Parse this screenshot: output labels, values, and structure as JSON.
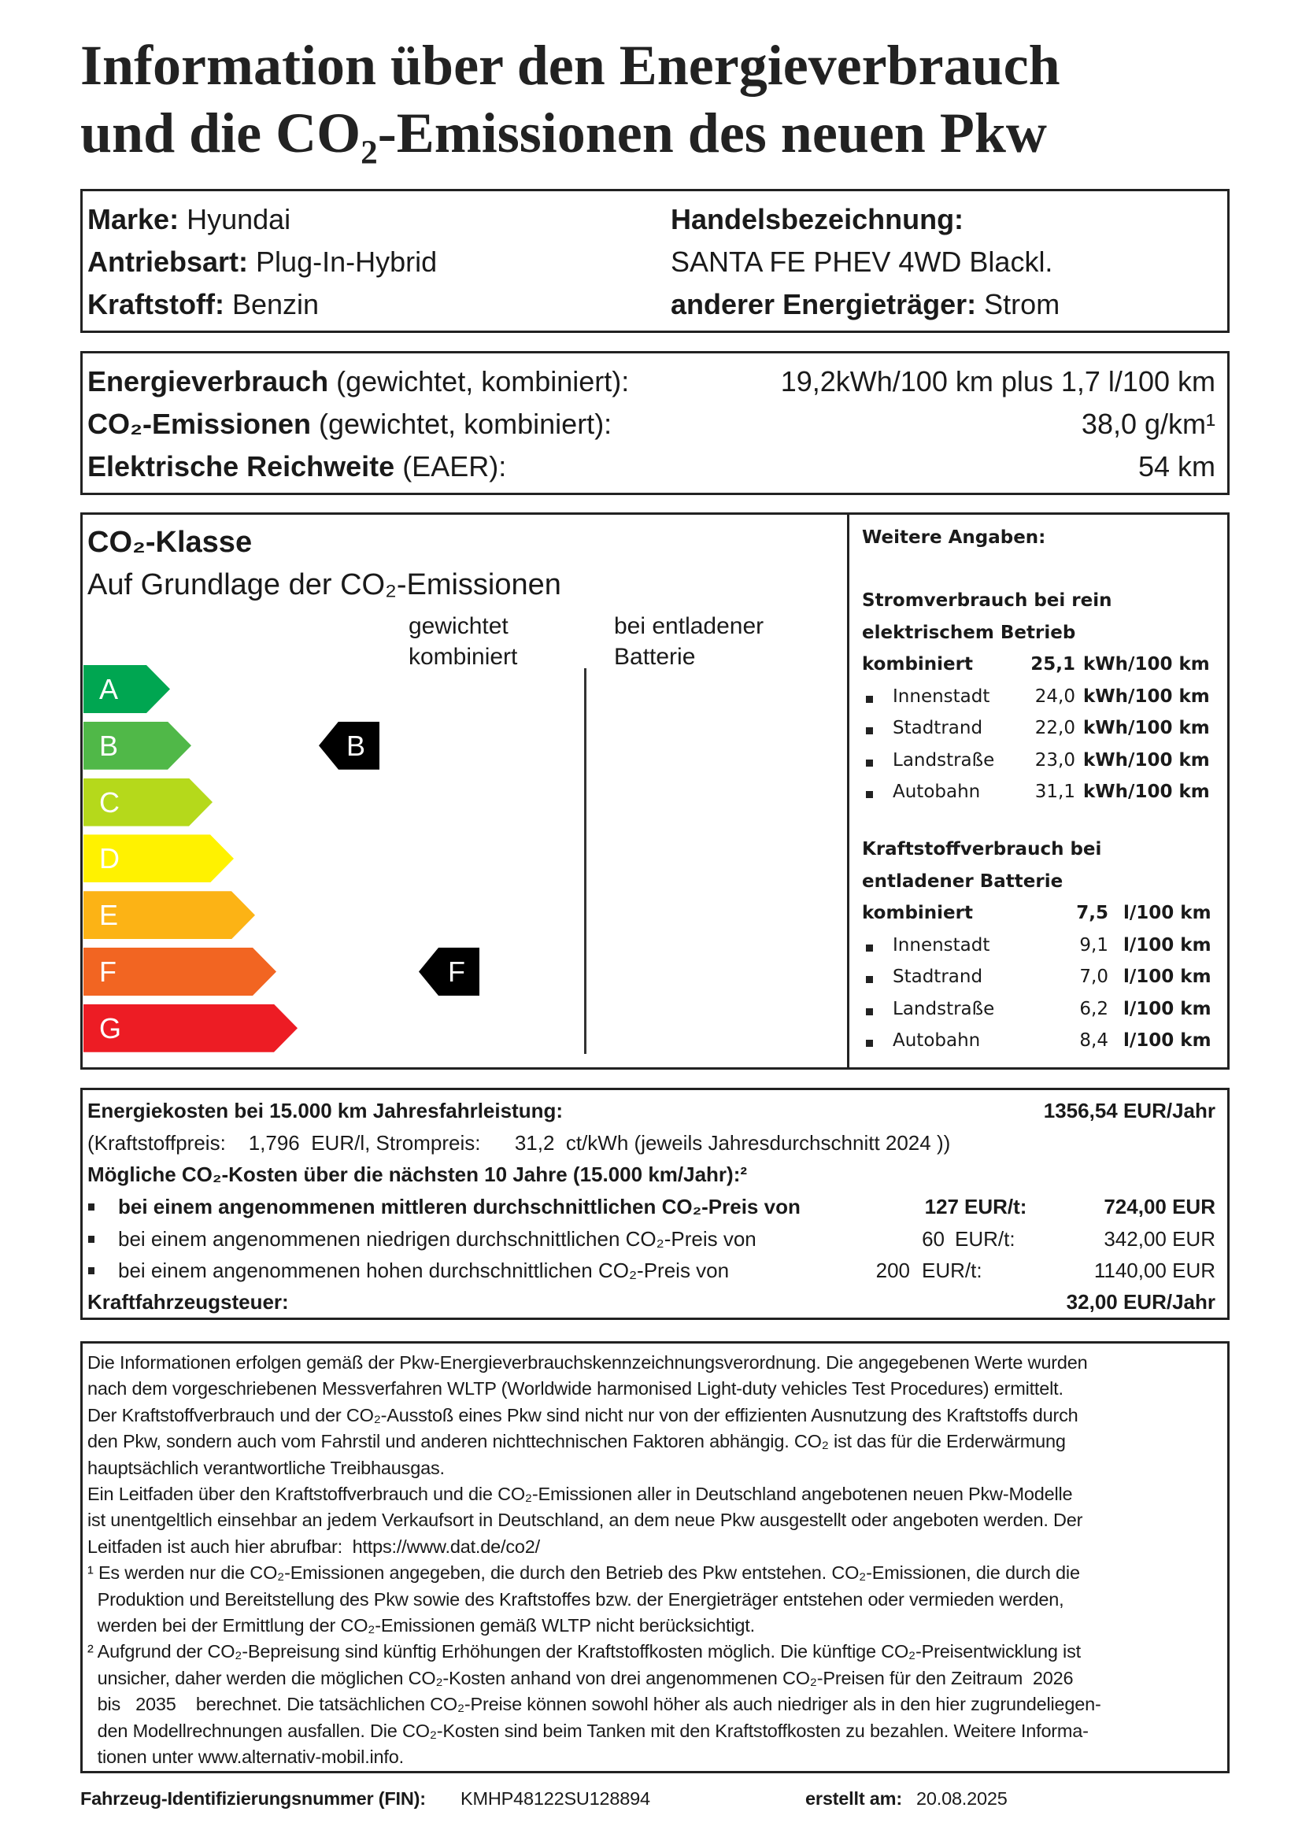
{
  "title": {
    "line1": "Information über den Energieverbrauch",
    "line2": "und die CO₂-Emissionen des neuen Pkw"
  },
  "vehicle": {
    "marke_label": "Marke:",
    "marke": "Hyundai",
    "antrieb_label": "Antriebsart:",
    "antrieb": "Plug-In-Hybrid",
    "kraftstoff_label": "Kraftstoff:",
    "kraftstoff": "Benzin",
    "handel_label": "Handelsbezeichnung:",
    "handel": "SANTA FE PHEV 4WD Blackl.",
    "energie_label": "anderer Energieträger:",
    "energie": "Strom"
  },
  "consumption": {
    "energie_bold": "Energieverbrauch",
    "energie_rest": " (gewichtet, kombiniert):",
    "energie_value": "19,2kWh/100 km plus 1,7 l/100 km",
    "co2_bold": "CO₂-Emissionen",
    "co2_rest": " (gewichtet, kombiniert):",
    "co2_value": "38,0 g/km¹",
    "range_bold": "Elektrische Reichweite",
    "range_rest": " (EAER):",
    "range_value": "54 km"
  },
  "co2_class": {
    "heading": "CO₂-Klasse",
    "subheading": "Auf Grundlage der CO₂-Emissionen",
    "col1_line1": "gewichtet",
    "col1_line2": "kombiniert",
    "col2_line1": "bei entladener",
    "col2_line2": "Batterie",
    "classes": [
      {
        "letter": "A",
        "color": "#00a651"
      },
      {
        "letter": "B",
        "color": "#50b848"
      },
      {
        "letter": "C",
        "color": "#b5d91b"
      },
      {
        "letter": "D",
        "color": "#fff200"
      },
      {
        "letter": "E",
        "color": "#fcb315"
      },
      {
        "letter": "F",
        "color": "#f26522"
      },
      {
        "letter": "G",
        "color": "#ed1c24"
      }
    ],
    "weighted_class": "B",
    "discharged_class": "F"
  },
  "further": {
    "heading": "Weitere Angaben:",
    "electric": {
      "title1": "Stromverbrauch bei rein",
      "title2": "elektrischem Betrieb",
      "combined_label": "kombiniert",
      "combined_value": "25,1",
      "combined_unit": "kWh/100 km",
      "items": [
        {
          "label": "Innenstadt",
          "value": "24,0",
          "unit": "kWh/100 km"
        },
        {
          "label": "Stadtrand",
          "value": "22,0",
          "unit": "kWh/100 km"
        },
        {
          "label": "Landstraße",
          "value": "23,0",
          "unit": "kWh/100 km"
        },
        {
          "label": "Autobahn",
          "value": "31,1",
          "unit": "kWh/100 km"
        }
      ]
    },
    "fuel": {
      "title1": "Kraftstoffverbrauch bei",
      "title2": "entladener Batterie",
      "combined_label": "kombiniert",
      "combined_value": "7,5",
      "combined_unit": "l/100 km",
      "items": [
        {
          "label": "Innenstadt",
          "value": "9,1",
          "unit": "l/100 km"
        },
        {
          "label": "Stadtrand",
          "value": "7,0",
          "unit": "l/100 km"
        },
        {
          "label": "Landstraße",
          "value": "6,2",
          "unit": "l/100 km"
        },
        {
          "label": "Autobahn",
          "value": "8,4",
          "unit": "l/100 km"
        }
      ]
    }
  },
  "costs": {
    "energy_label": "Energiekosten bei 15.000 km Jahresfahrleistung:",
    "energy_value": "1356,54 EUR/Jahr",
    "prices_line": "(Kraftstoffpreis:    1,796  EUR/l, Strompreis:      31,2  ct/kWh (jeweils Jahresdurchschnitt 2024 ))",
    "co2_label": "Mögliche CO₂-Kosten über die nächsten 10 Jahre (15.000 km/Jahr):²",
    "scenarios": [
      {
        "text": "bei einem angenommenen mittleren durchschnittlichen CO₂-Preis von",
        "price": "127",
        "unit": "EUR/t:",
        "amount": "724,00 EUR",
        "bold": true
      },
      {
        "text": "bei einem angenommenen niedrigen durchschnittlichen CO₂-Preis von",
        "price": "60",
        "unit": "EUR/t:",
        "amount": "342,00 EUR",
        "bold": false
      },
      {
        "text": "bei einem angenommenen hohen durchschnittlichen CO₂-Preis von",
        "price": "200",
        "unit": "EUR/t:",
        "amount": "1140,00 EUR",
        "bold": false
      }
    ],
    "tax_label": "Kraftfahrzeugsteuer:",
    "tax_value": "32,00 EUR/Jahr"
  },
  "notes": [
    "Die Informationen erfolgen gemäß der Pkw-Energieverbrauchskennzeichnungsverordnung. Die angegebenen Werte wurden",
    "nach dem vorgeschriebenen Messverfahren WLTP (Worldwide harmonised Light-duty vehicles Test Procedures) ermittelt.",
    "Der Kraftstoffverbrauch und der CO₂-Ausstoß eines Pkw sind nicht nur von der effizienten Ausnutzung des Kraftstoffs durch",
    "den Pkw, sondern auch vom Fahrstil und anderen nichttechnischen Faktoren abhängig. CO₂ ist das für die Erderwärmung",
    "hauptsächlich verantwortliche Treibhausgas.",
    "Ein Leitfaden über den Kraftstoffverbrauch und die CO₂-Emissionen aller in Deutschland angebotenen neuen Pkw-Modelle",
    "ist unentgeltlich einsehbar an jedem Verkaufsort in Deutschland, an dem neue Pkw ausgestellt oder angeboten werden. Der",
    "Leitfaden ist auch hier abrufbar:  https://www.dat.de/co2/",
    "¹ Es werden nur die CO₂-Emissionen angegeben, die durch den Betrieb des Pkw entstehen. CO₂-Emissionen, die durch die",
    "  Produktion und Bereitstellung des Pkw sowie des Kraftstoffes bzw. der Energieträger entstehen oder vermieden werden,",
    "  werden bei der Ermittlung der CO₂-Emissionen gemäß WLTP nicht berücksichtigt.",
    "² Aufgrund der CO₂-Bepreisung sind künftig Erhöhungen der Kraftstoffkosten möglich. Die künftige CO₂-Preisentwicklung ist",
    "  unsicher, daher werden die möglichen CO₂-Kosten anhand von drei angenommenen CO₂-Preisen für den Zeitraum  2026",
    "  bis   2035    berechnet. Die tatsächlichen CO₂-Preise können sowohl höher als auch niedriger als in den hier zugrundeliegen-",
    "  den Modellrechnungen ausfallen. Die CO₂-Kosten sind beim Tanken mit den Kraftstoffkosten zu bezahlen. Weitere Informa-",
    "  tionen unter www.alternativ-mobil.info."
  ],
  "footer": {
    "fin_label": "Fahrzeug-Identifizierungsnummer (FIN):",
    "fin": "KMHP48122SU128894",
    "date_label": "erstellt am:",
    "date": "20.08.2025"
  }
}
